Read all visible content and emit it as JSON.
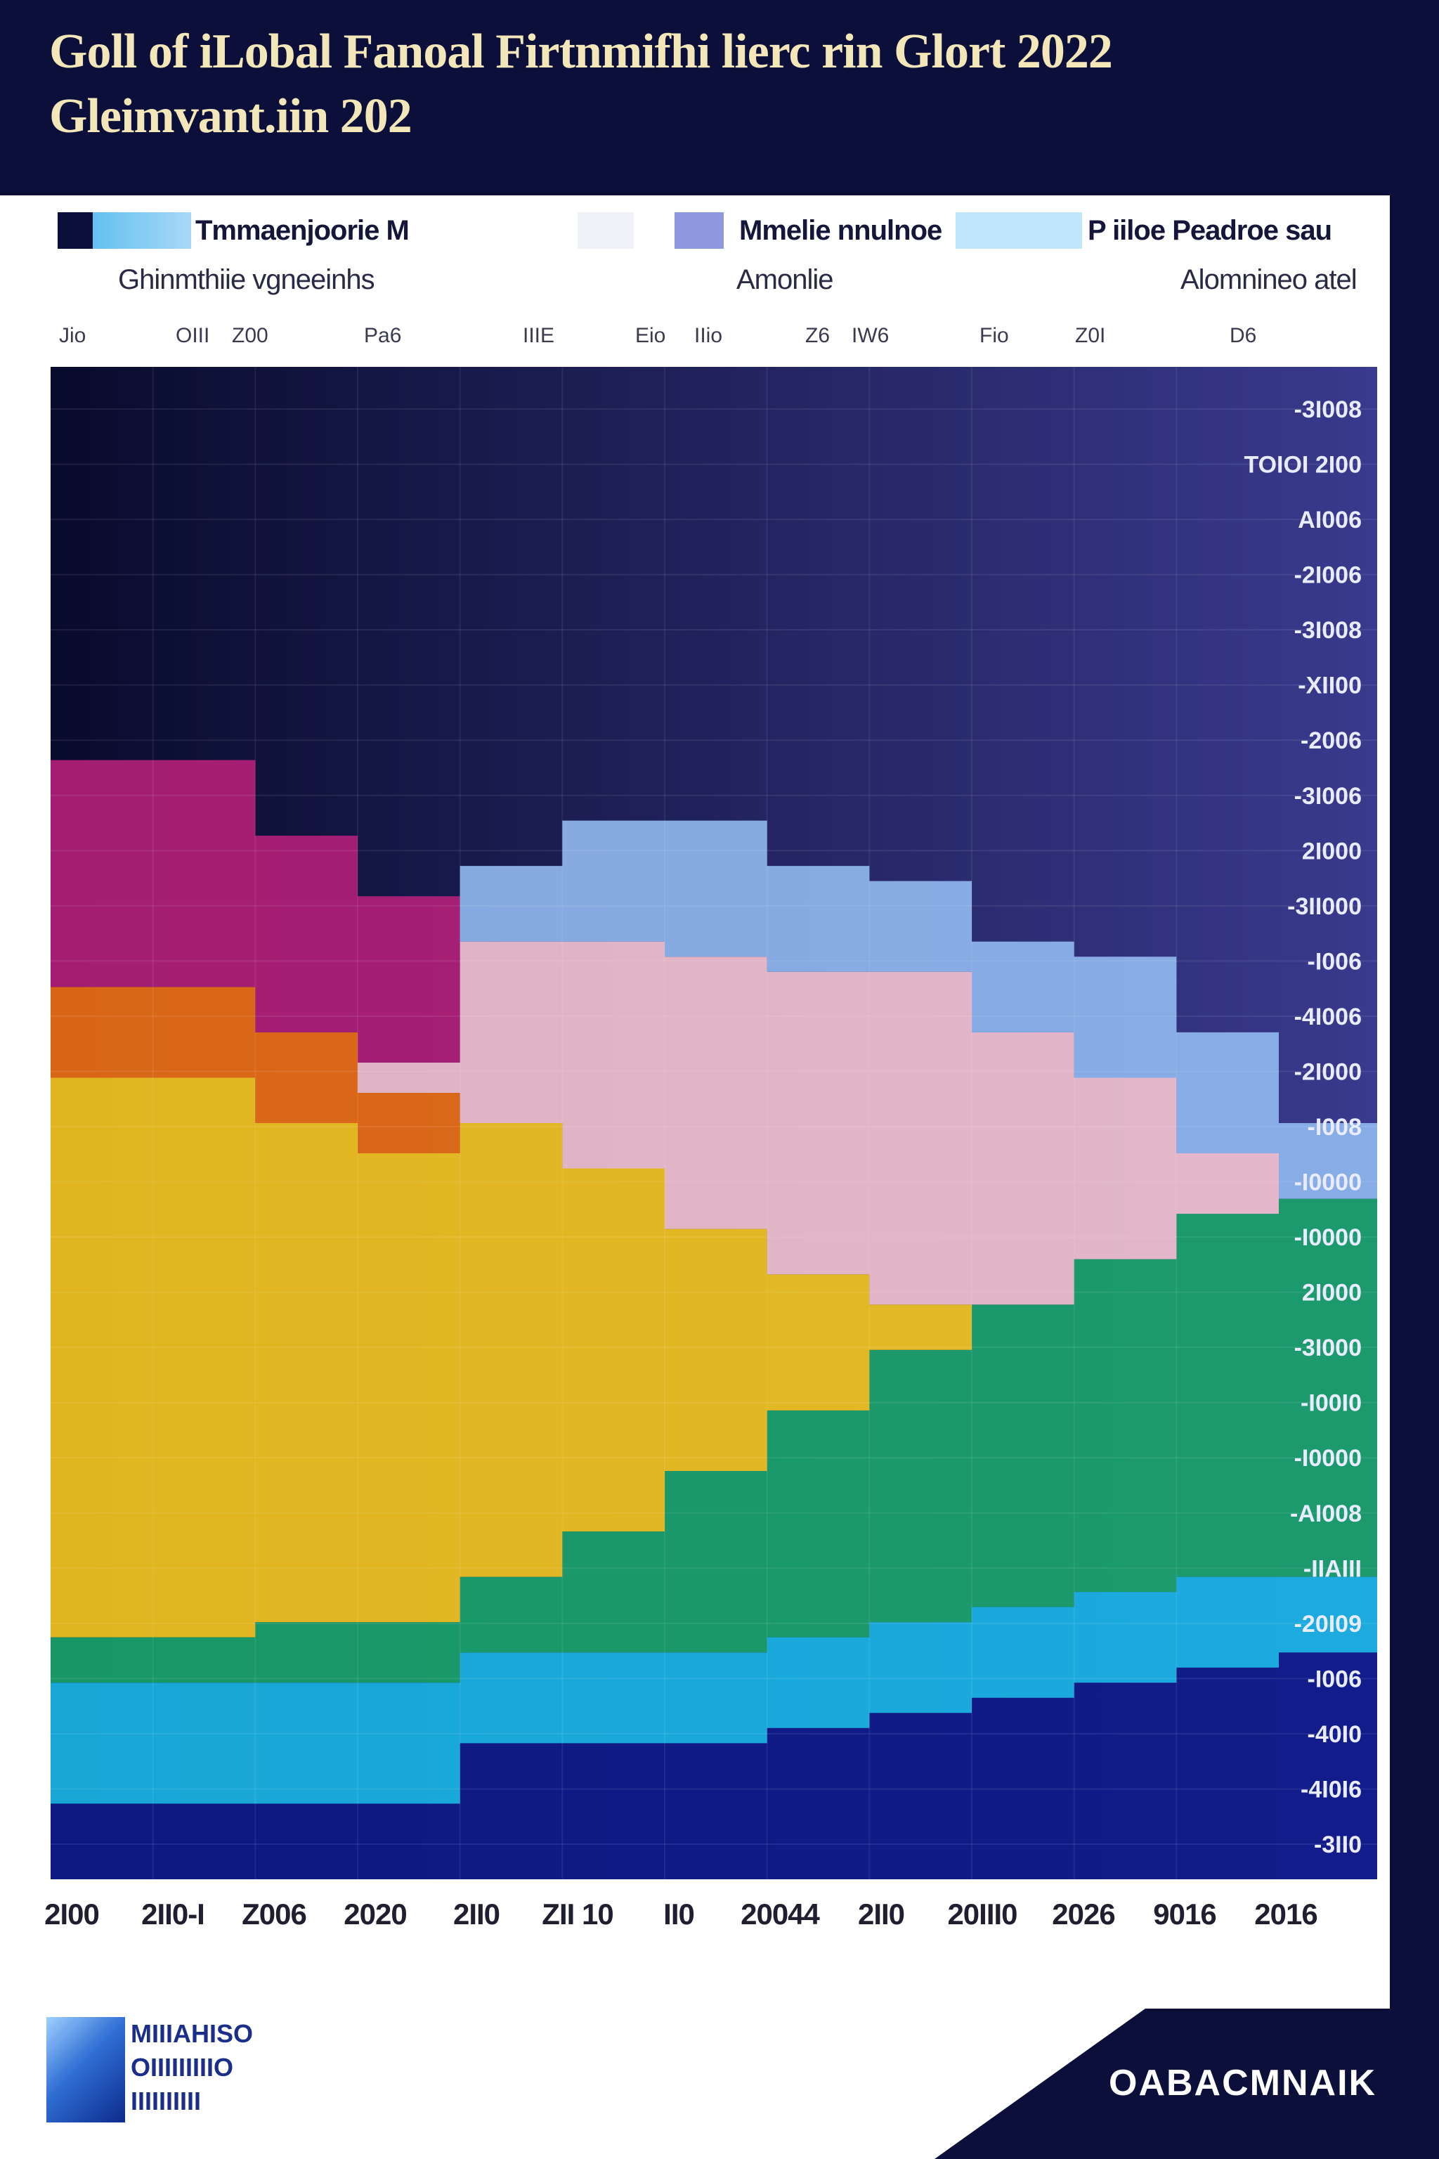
{
  "title": {
    "line1": "Goll of iLobal Fanoal Firtnmifhi lierc rin Glort 2022",
    "line2": "Gleimvant.iin 202"
  },
  "legend": [
    {
      "label": "Tmmaenjoorie M",
      "sub": "Ghinmthiie vgneeinhs",
      "colors": [
        "#0b0f3a",
        "#63c0f0",
        "#a9d8f7"
      ]
    },
    {
      "label": "Mmelie nnulnoe",
      "sub": "Amonlie",
      "colors": [
        "#eef1f6",
        "#8e98df"
      ]
    },
    {
      "label": "P iiloe Peadroe sau",
      "sub": "Alomnineo atel",
      "colors": [
        "#bfe6fb"
      ]
    }
  ],
  "top_ticks": [
    "Jio",
    "OIII",
    "Z00",
    "Pa6",
    "IIIE",
    "Eio",
    "IIio",
    "Z6",
    "IW6",
    "Fio",
    "Z0I",
    "D6"
  ],
  "chart_data": {
    "type": "area",
    "title": "Goll of iLobal Fanoal Firtnmifhi lierc rin Glort 2022 Gleimvant.iin 202",
    "xlabel": "",
    "ylabel": "",
    "x": [
      "2I00",
      "2II0",
      "Z006",
      "2020",
      "2II0",
      "2II0",
      "II0",
      "2004",
      "2II0",
      "2006",
      "2026",
      "2016",
      "2016"
    ],
    "x_tick_labels": [
      "2I00",
      "2II0-I",
      "Z006",
      "2020",
      "2II0",
      "ZII 10",
      "II0",
      "20044",
      "2II0",
      "20III0",
      "2026",
      "9016",
      "2016"
    ],
    "y_tick_labels": [
      "-3I008",
      "TOIOI 2I00",
      "AI006",
      "-2I006",
      "-3I008",
      "-XII00",
      "-2006",
      "-3I006",
      "2I000",
      "-3II000",
      "-I006",
      "-4I006",
      "-2I000",
      "-I008",
      "-I0000",
      "-I0000",
      "2I000",
      "-3I000",
      "-I00I0",
      "-I0000",
      "-AI008",
      "-IIAIII",
      "-20I09",
      "-I006",
      "-40I0",
      "-4I0I6",
      "-3II0"
    ],
    "ylim": [
      0,
      100
    ],
    "stacking": "stacked",
    "series": [
      {
        "color": "#0f1a8a",
        "values": [
          5,
          5,
          5,
          5,
          9,
          9,
          9,
          10,
          11,
          12,
          13,
          14,
          15
        ]
      },
      {
        "color": "#1ab4e6",
        "values": [
          8,
          8,
          8,
          8,
          6,
          6,
          6,
          6,
          6,
          6,
          6,
          6,
          5
        ]
      },
      {
        "color": "#1aa36b",
        "values": [
          3,
          3,
          4,
          4,
          5,
          8,
          12,
          15,
          18,
          20,
          22,
          24,
          25
        ]
      },
      {
        "color": "#f3c41f",
        "values": [
          37,
          37,
          33,
          31,
          30,
          24,
          16,
          9,
          3,
          0,
          0,
          0,
          0
        ]
      },
      {
        "color": "#ec6f16",
        "values": [
          6,
          6,
          6,
          4,
          0,
          0,
          0,
          0,
          0,
          0,
          0,
          0,
          0
        ]
      },
      {
        "color": "#f2c1cf",
        "values": [
          0,
          0,
          0,
          2,
          12,
          15,
          18,
          20,
          22,
          18,
          12,
          4,
          0
        ]
      },
      {
        "color": "#b21f7a",
        "values": [
          15,
          15,
          13,
          11,
          0,
          0,
          0,
          0,
          0,
          0,
          0,
          0,
          0
        ]
      },
      {
        "color": "#8fb6ee",
        "values": [
          0,
          0,
          0,
          0,
          5,
          8,
          9,
          7,
          6,
          6,
          8,
          8,
          5
        ]
      }
    ]
  },
  "footer": {
    "left_logo_text": [
      "MIIIAHISO",
      "OIIIIIIIIIO",
      "IIIIIIIIII"
    ],
    "corner_text": "OABACMNAIK"
  }
}
